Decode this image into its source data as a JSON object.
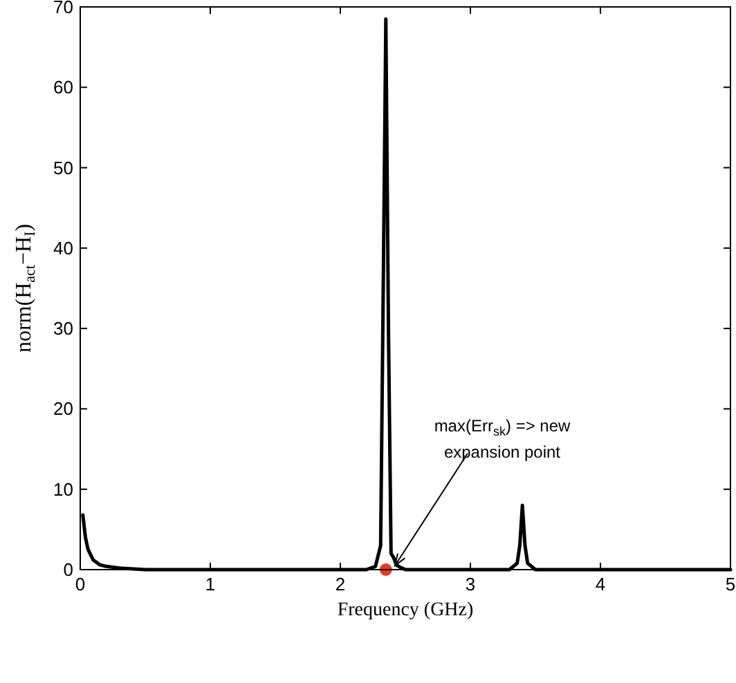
{
  "chart_data": {
    "type": "line",
    "xlabel": "Frequency (GHz)",
    "ylabel": "norm(H$_{act}$−H$_{I}$)",
    "xlim": [
      0,
      5
    ],
    "ylim": [
      0,
      70
    ],
    "xticks": [
      0,
      1,
      2,
      3,
      4,
      5
    ],
    "yticks": [
      0,
      10,
      20,
      30,
      40,
      50,
      60,
      70
    ],
    "grid": false,
    "series": [
      {
        "color": "#000000",
        "x": [
          0.02,
          0.04,
          0.06,
          0.1,
          0.15,
          0.2,
          0.3,
          0.5,
          1,
          2.2,
          2.27,
          2.31,
          2.33,
          2.35,
          2.37,
          2.39,
          2.41,
          2.43,
          2.46,
          2.5,
          3.3,
          3.36,
          3.38,
          3.4,
          3.42,
          3.44,
          3.5,
          5
        ],
        "values": [
          6.8,
          4,
          2.5,
          1.2,
          0.6,
          0.4,
          0.2,
          0,
          0,
          0,
          0.4,
          3,
          35,
          68.5,
          30,
          2,
          1.5,
          0.6,
          0.3,
          0,
          0,
          0.8,
          3,
          8,
          3,
          0.8,
          0,
          0
        ]
      },
      {
        "type": "scatter",
        "color": "#e8391e",
        "marker": "circle",
        "x": [
          2.35
        ],
        "values": [
          0
        ]
      }
    ],
    "annotations": [
      {
        "text": "max(Err$_{sk}$) => new expansion point",
        "x": 2.42,
        "y": 0.5
      }
    ]
  }
}
